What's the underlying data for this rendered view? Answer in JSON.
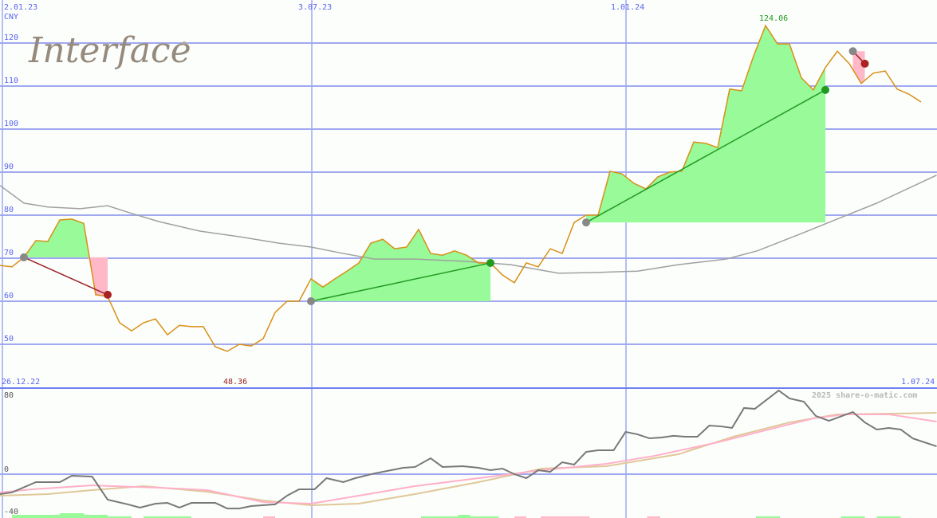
{
  "logo_text": "Interface",
  "watermark": "2025 share-o-matic.com",
  "colors": {
    "grid": "#a0a8f0",
    "axis_text": "#5a64f0",
    "price": "#d89018",
    "ma": "#a0a0a0",
    "win_fill": "#98fa98",
    "loss_fill": "#ffb8c8",
    "win_line": "#229922",
    "loss_line": "#992222",
    "osc": "#787878",
    "osc_pink": "#ffb0c8",
    "osc_tan": "#e0c898"
  },
  "chart_data": [
    {
      "type": "line",
      "currency": "CNY",
      "x_tick_labels": [
        "2.01.23",
        "3.07.23",
        "1.01.24"
      ],
      "y_ticks": [
        50,
        60,
        70,
        80,
        90,
        100,
        110,
        120
      ],
      "ylim": [
        45,
        128
      ],
      "grid": true,
      "max_label": "124.06",
      "min_label": "48.36",
      "start_label": "26.12.22",
      "end_label": "1.07.24",
      "price_weekly": [
        68.3,
        68.0,
        70.2,
        74.1,
        73.9,
        78.9,
        79.1,
        78.1,
        61.5,
        61.1,
        55.0,
        53.1,
        55.0,
        55.9,
        52.2,
        54.4,
        54.1,
        54.1,
        49.4,
        48.36,
        50.0,
        49.6,
        51.3,
        57.4,
        60.0,
        60.0,
        65.2,
        63.3,
        65.2,
        67.0,
        68.9,
        73.5,
        74.4,
        72.2,
        72.6,
        76.7,
        71.1,
        70.7,
        71.7,
        70.7,
        68.9,
        68.9,
        66.1,
        64.3,
        68.9,
        68.0,
        72.2,
        71.1,
        78.3,
        80.0,
        80.0,
        90.2,
        89.6,
        87.4,
        86.1,
        88.9,
        90.0,
        90.2,
        97.0,
        96.7,
        95.7,
        109.3,
        108.9,
        117.0,
        124.06,
        119.8,
        119.8,
        111.9,
        109.1,
        114.3,
        118.1,
        115.2,
        110.6,
        113.0,
        113.5,
        109.3,
        108.1,
        106.3
      ],
      "moving_average": [
        [
          0,
          86.9
        ],
        [
          2,
          82.8
        ],
        [
          4,
          81.9
        ],
        [
          6.7,
          81.5
        ],
        [
          9,
          82.2
        ],
        [
          11,
          80.4
        ],
        [
          13.3,
          78.5
        ],
        [
          16.7,
          76.3
        ],
        [
          20,
          75.0
        ],
        [
          23.3,
          73.5
        ],
        [
          26,
          72.6
        ],
        [
          28.7,
          71.1
        ],
        [
          31.3,
          69.8
        ],
        [
          34.7,
          69.8
        ],
        [
          38.7,
          69.3
        ],
        [
          42.7,
          68.5
        ],
        [
          46.7,
          66.5
        ],
        [
          50,
          66.7
        ],
        [
          53.3,
          67.0
        ],
        [
          56.7,
          68.5
        ],
        [
          60.7,
          69.8
        ],
        [
          63.3,
          71.7
        ],
        [
          66.7,
          75.4
        ],
        [
          70,
          79.1
        ],
        [
          73.3,
          82.8
        ],
        [
          78.3,
          89.3
        ]
      ],
      "trades": [
        {
          "result": "loss",
          "entry_week": 2,
          "entry": 70.2,
          "exit_week": 9,
          "exit": 61.5
        },
        {
          "result": "win",
          "entry_week": 26,
          "entry": 60.0,
          "exit_week": 41,
          "exit": 68.9
        },
        {
          "result": "win",
          "entry_week": 49,
          "entry": 78.3,
          "exit_week": 69,
          "exit": 109.1
        },
        {
          "result": "loss",
          "entry_week": 71.3,
          "entry": 118.1,
          "exit_week": 72.3,
          "exit": 115.2
        }
      ]
    },
    {
      "type": "line",
      "y_ticks": [
        80,
        0,
        -40
      ],
      "ylim": [
        -41,
        80
      ],
      "oscillator": [
        [
          0,
          -18.5
        ],
        [
          1,
          -17
        ],
        [
          3,
          -7.4
        ],
        [
          5,
          -7.4
        ],
        [
          6,
          -1.5
        ],
        [
          7.7,
          -2.2
        ],
        [
          9,
          -23.7
        ],
        [
          10.7,
          -28.1
        ],
        [
          11.7,
          -31.1
        ],
        [
          13,
          -27.4
        ],
        [
          14,
          -26.7
        ],
        [
          15,
          -31.1
        ],
        [
          16,
          -26.7
        ],
        [
          18,
          -26.7
        ],
        [
          19,
          -31.9
        ],
        [
          20,
          -31.9
        ],
        [
          21,
          -29.6
        ],
        [
          23,
          -28.1
        ],
        [
          24,
          -20
        ],
        [
          25,
          -14.1
        ],
        [
          26.3,
          -14.1
        ],
        [
          27.3,
          -3.7
        ],
        [
          28.7,
          -7.4
        ],
        [
          29.7,
          -3.7
        ],
        [
          31.3,
          0.7
        ],
        [
          32.7,
          3.7
        ],
        [
          33.7,
          5.9
        ],
        [
          34.7,
          6.7
        ],
        [
          36,
          14.8
        ],
        [
          37,
          6.7
        ],
        [
          38.7,
          7.4
        ],
        [
          40,
          5.9
        ],
        [
          41,
          3.7
        ],
        [
          42,
          5.2
        ],
        [
          43,
          0
        ],
        [
          44,
          -3.7
        ],
        [
          45,
          3.7
        ],
        [
          46,
          2.2
        ],
        [
          47,
          11.1
        ],
        [
          48,
          8.9
        ],
        [
          49,
          20.7
        ],
        [
          50,
          22.2
        ],
        [
          51.3,
          22.2
        ],
        [
          52.3,
          39.3
        ],
        [
          53.3,
          37
        ],
        [
          54.3,
          33.3
        ],
        [
          55.3,
          34.1
        ],
        [
          56.3,
          35.6
        ],
        [
          57.3,
          34.8
        ],
        [
          58.3,
          34.8
        ],
        [
          59.3,
          45.2
        ],
        [
          60.3,
          44.4
        ],
        [
          61.2,
          43
        ],
        [
          62.2,
          61.5
        ],
        [
          63.1,
          60.7
        ],
        [
          65.1,
          77.8
        ],
        [
          66,
          70.4
        ],
        [
          67.2,
          67.4
        ],
        [
          68.2,
          54.1
        ],
        [
          69.3,
          49.6
        ],
        [
          71.3,
          57.8
        ],
        [
          72.3,
          48.1
        ],
        [
          73.3,
          41.5
        ],
        [
          74.3,
          43
        ],
        [
          75.3,
          41.5
        ],
        [
          76.3,
          33.3
        ],
        [
          78.3,
          25.9
        ]
      ],
      "signal_pink": [
        [
          0,
          -17
        ],
        [
          2.7,
          -14.1
        ],
        [
          7.7,
          -10.4
        ],
        [
          13.3,
          -12.6
        ],
        [
          17.3,
          -14.8
        ],
        [
          22,
          -25.9
        ],
        [
          26,
          -27.4
        ],
        [
          30,
          -20
        ],
        [
          34.7,
          -11.1
        ],
        [
          40,
          -3.7
        ],
        [
          45.3,
          3.7
        ],
        [
          50.7,
          9.6
        ],
        [
          54.7,
          17
        ],
        [
          60,
          29.6
        ],
        [
          65.3,
          44.4
        ],
        [
          68,
          51.9
        ],
        [
          70.7,
          55.6
        ],
        [
          74.3,
          55.6
        ],
        [
          78.3,
          48.9
        ]
      ],
      "signal_tan": [
        [
          0,
          -20
        ],
        [
          4,
          -18.5
        ],
        [
          7.7,
          -14.8
        ],
        [
          12,
          -11.1
        ],
        [
          17.3,
          -16.3
        ],
        [
          22,
          -24.4
        ],
        [
          26,
          -28.9
        ],
        [
          30,
          -27.4
        ],
        [
          34.7,
          -18.5
        ],
        [
          40,
          -7.4
        ],
        [
          45.3,
          5.2
        ],
        [
          50.7,
          7.4
        ],
        [
          56.7,
          18.5
        ],
        [
          61.3,
          34.8
        ],
        [
          66,
          48.1
        ],
        [
          70,
          55.6
        ],
        [
          74.7,
          56.3
        ],
        [
          78.3,
          57
        ]
      ],
      "volume_bars": [
        {
          "from": 1,
          "to": 2,
          "level": 2,
          "color": "green"
        },
        {
          "from": 2,
          "to": 5,
          "level": 2,
          "color": "green"
        },
        {
          "from": 5,
          "to": 7,
          "level": 3,
          "color": "green"
        },
        {
          "from": 7,
          "to": 9,
          "level": 2,
          "color": "green"
        },
        {
          "from": 9,
          "to": 11,
          "level": 1,
          "color": "green"
        },
        {
          "from": 12,
          "to": 16,
          "level": 1,
          "color": "green"
        },
        {
          "from": 22,
          "to": 23,
          "level": 1,
          "color": "pink"
        },
        {
          "from": 35.2,
          "to": 38.3,
          "level": 1,
          "color": "green"
        },
        {
          "from": 38.3,
          "to": 39.3,
          "level": 2,
          "color": "green"
        },
        {
          "from": 39.3,
          "to": 41.7,
          "level": 1,
          "color": "green"
        },
        {
          "from": 43,
          "to": 44,
          "level": 1,
          "color": "pink"
        },
        {
          "from": 45.2,
          "to": 49.3,
          "level": 1,
          "color": "pink"
        },
        {
          "from": 54.1,
          "to": 55.2,
          "level": 1,
          "color": "pink"
        },
        {
          "from": 63.2,
          "to": 65.2,
          "level": 1,
          "color": "green"
        },
        {
          "from": 70.3,
          "to": 72.3,
          "level": 1,
          "color": "green"
        },
        {
          "from": 73.3,
          "to": 75.3,
          "level": 1,
          "color": "green"
        }
      ]
    }
  ]
}
